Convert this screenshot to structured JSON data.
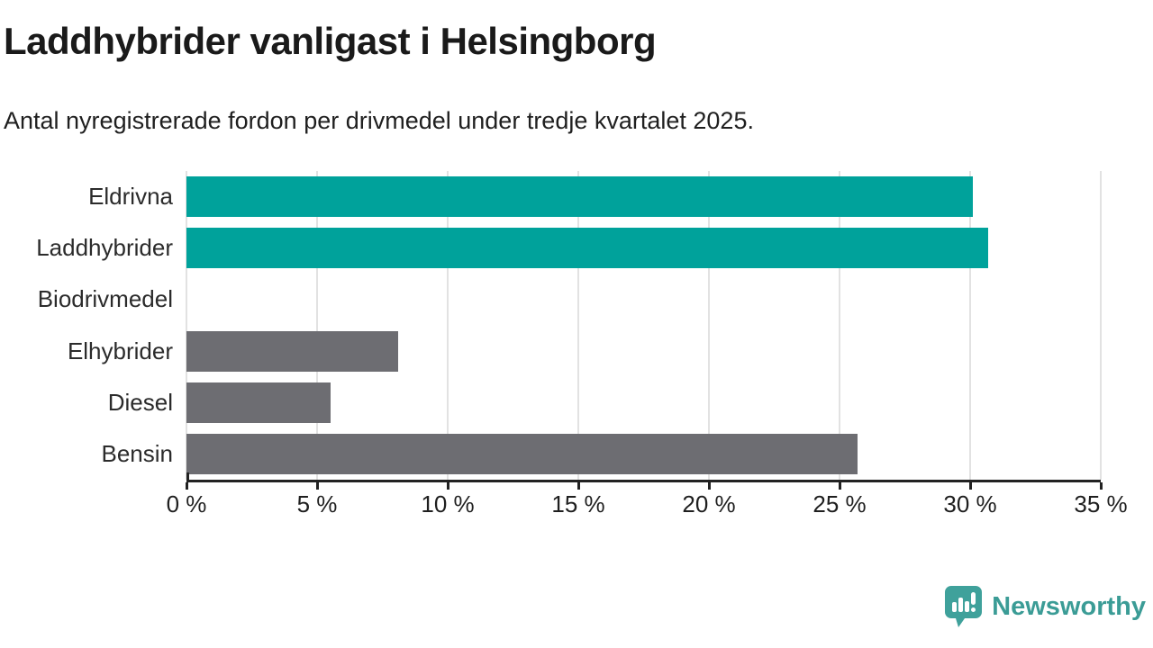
{
  "page": {
    "title": "Laddhybrider vanligast i Helsingborg",
    "subtitle": "Antal nyregistrerade fordon per drivmedel under tredje kvartalet 2025."
  },
  "chart_data": {
    "type": "bar",
    "orientation": "horizontal",
    "title": "Laddhybrider vanligast i Helsingborg",
    "subtitle": "Antal nyregistrerade fordon per drivmedel under tredje kvartalet 2025.",
    "categories": [
      "Eldrivna",
      "Laddhybrider",
      "Biodrivmedel",
      "Elhybrider",
      "Diesel",
      "Bensin"
    ],
    "values": [
      30.1,
      30.7,
      0,
      8.1,
      5.5,
      25.7
    ],
    "unit": "%",
    "xlabel": "",
    "ylabel": "",
    "xlim": [
      0,
      35
    ],
    "x_ticks": [
      0,
      5,
      10,
      15,
      20,
      25,
      30,
      35
    ],
    "x_tick_labels": [
      "0 %",
      "5 %",
      "10 %",
      "15 %",
      "20 %",
      "25 %",
      "30 %",
      "35 %"
    ],
    "bar_colors": [
      "#00a29b",
      "#00a29b",
      "#00a29b",
      "#6d6d72",
      "#6d6d72",
      "#6d6d72"
    ],
    "grid": true,
    "legend": "none"
  },
  "branding": {
    "logo_text": "Newsworthy"
  },
  "colors": {
    "accent_teal": "#00a29b",
    "neutral_gray": "#6d6d72",
    "logo_teal": "#3b9c96",
    "gridline": "#e2e2e2",
    "axis": "#222222"
  }
}
